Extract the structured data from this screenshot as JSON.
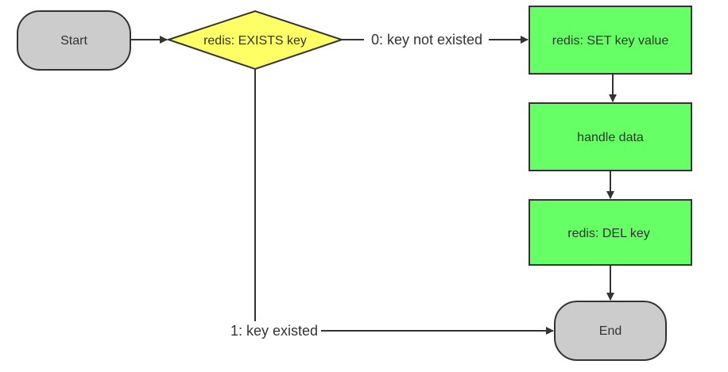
{
  "nodes": {
    "start": {
      "label": "Start",
      "shape": "terminator",
      "fill": "#cccccc"
    },
    "exists": {
      "label": "redis: EXISTS key",
      "shape": "decision",
      "fill": "#ffff66"
    },
    "set": {
      "label": "redis: SET key value",
      "shape": "process",
      "fill": "#66ff66"
    },
    "handle": {
      "label": "handle data",
      "shape": "process",
      "fill": "#66ff66"
    },
    "del": {
      "label": "redis: DEL key",
      "shape": "process",
      "fill": "#66ff66"
    },
    "end": {
      "label": "End",
      "shape": "terminator",
      "fill": "#cccccc"
    }
  },
  "edges": {
    "start_to_exists": {
      "from": "Start",
      "to": "redis: EXISTS key",
      "label": ""
    },
    "exists_to_set": {
      "from": "redis: EXISTS key",
      "to": "redis: SET key value",
      "label": "0: key not existed"
    },
    "set_to_handle": {
      "from": "redis: SET key value",
      "to": "handle data",
      "label": ""
    },
    "handle_to_del": {
      "from": "handle data",
      "to": "redis: DEL key",
      "label": ""
    },
    "del_to_end": {
      "from": "redis: DEL key",
      "to": "End",
      "label": ""
    },
    "exists_to_end": {
      "from": "redis: EXISTS key",
      "to": "End",
      "label": "1: key existed"
    }
  },
  "colors": {
    "stroke": "#333333",
    "text": "#333333",
    "background": "#ffffff"
  }
}
